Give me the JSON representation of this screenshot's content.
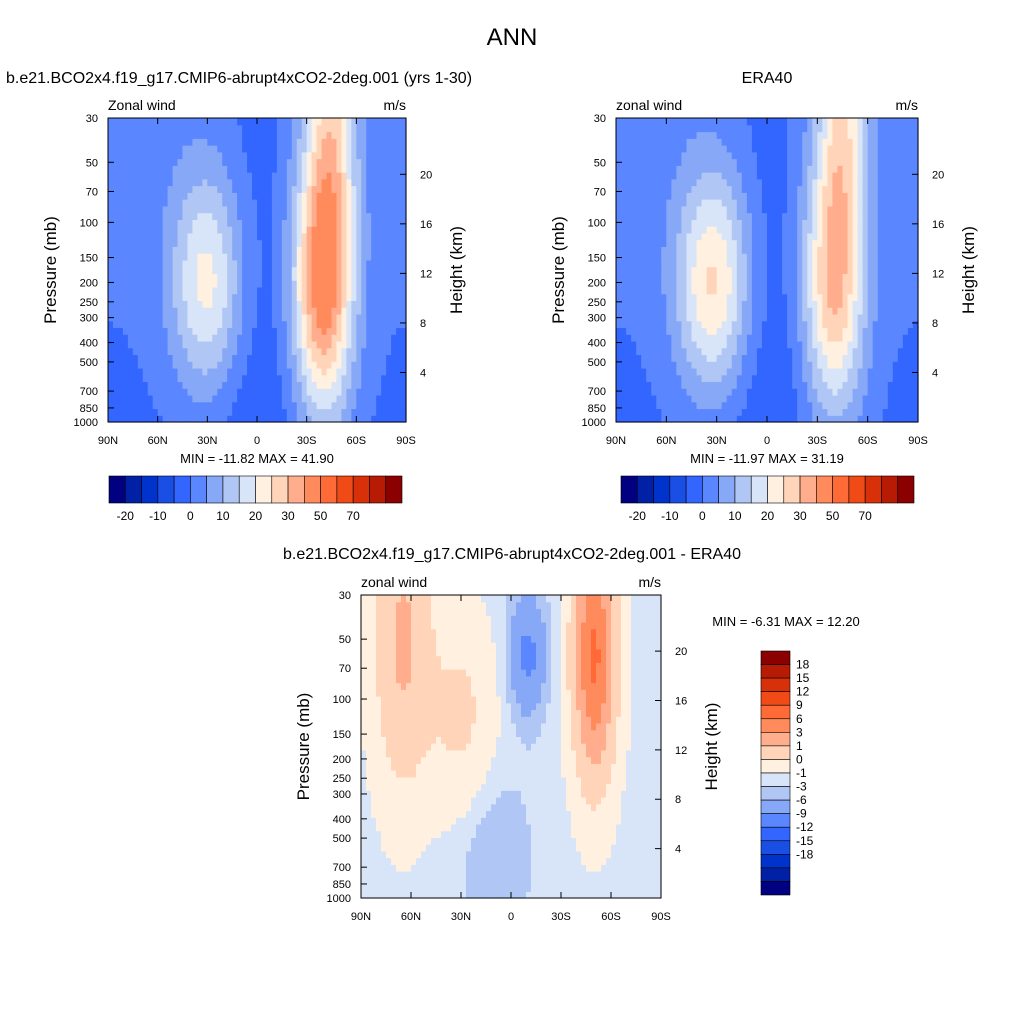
{
  "figure": {
    "main_title": "ANN"
  },
  "palette": {
    "neg": [
      "#000080",
      "#0021a6",
      "#0033cc",
      "#1a4fe6",
      "#3366ff",
      "#5a86ff",
      "#87a8f7",
      "#b0c6f5",
      "#d8e5f8"
    ],
    "pos": [
      "#fff0e0",
      "#ffd4b8",
      "#ffad8c",
      "#ff8a5c",
      "#ff6a36",
      "#f04a16",
      "#d83008",
      "#b81b03",
      "#8b0000"
    ],
    "fill_order_note": ""
  },
  "colorbar_top": {
    "labels": [
      "-20",
      "-10",
      "0",
      "10",
      "20",
      "30",
      "50",
      "70"
    ]
  },
  "colorbar_diff": {
    "labels": [
      "18",
      "15",
      "12",
      "9",
      "6",
      "3",
      "1",
      "0",
      "-1",
      "-3",
      "-6",
      "-9",
      "-12",
      "-15",
      "-18"
    ]
  },
  "chart_data": [
    {
      "type": "heatmap",
      "panel": "model",
      "title": "b.e21.BCO2x4.f19_g17.CMIP6-abrupt4xCO2-2deg.001 (yrs 1-30)",
      "left_string": "Zonal wind",
      "right_string": "m/s",
      "xlabel": "",
      "ylabel": "Pressure (mb)",
      "y2label": "Height (km)",
      "x_ticks": [
        "90N",
        "60N",
        "30N",
        "0",
        "30S",
        "60S",
        "90S"
      ],
      "y_ticks": [
        "30",
        "50",
        "70",
        "100",
        "150",
        "200",
        "250",
        "300",
        "400",
        "500",
        "700",
        "850",
        "1000"
      ],
      "y2_ticks": [
        "20",
        "16",
        "12",
        "8",
        "4"
      ],
      "min_max": "MIN = -11.82  MAX =  41.90",
      "min": -11.82,
      "max": 41.9,
      "jets": [
        {
          "lat": 30,
          "p": 200,
          "u": 22
        },
        {
          "lat": -40,
          "p": 200,
          "u": 40
        }
      ]
    },
    {
      "type": "heatmap",
      "panel": "obs",
      "title": "ERA40",
      "left_string": "zonal wind",
      "right_string": "m/s",
      "xlabel": "",
      "ylabel": "Pressure (mb)",
      "y2label": "Height (km)",
      "x_ticks": [
        "90N",
        "60N",
        "30N",
        "0",
        "30S",
        "60S",
        "90S"
      ],
      "y_ticks": [
        "30",
        "50",
        "70",
        "100",
        "150",
        "200",
        "250",
        "300",
        "400",
        "500",
        "700",
        "850",
        "1000"
      ],
      "y2_ticks": [
        "20",
        "16",
        "12",
        "8",
        "4"
      ],
      "min_max": "MIN = -11.97  MAX =  31.19",
      "min": -11.97,
      "max": 31.19,
      "jets": [
        {
          "lat": 32,
          "p": 200,
          "u": 26
        },
        {
          "lat": -40,
          "p": 200,
          "u": 31
        }
      ]
    },
    {
      "type": "heatmap",
      "panel": "diff",
      "title": "b.e21.BCO2x4.f19_g17.CMIP6-abrupt4xCO2-2deg.001 - ERA40",
      "left_string": "zonal wind",
      "right_string": "m/s",
      "xlabel": "",
      "ylabel": "Pressure (mb)",
      "y2label": "Height (km)",
      "x_ticks": [
        "90N",
        "60N",
        "30N",
        "0",
        "30S",
        "60S",
        "90S"
      ],
      "y_ticks": [
        "30",
        "50",
        "70",
        "100",
        "150",
        "200",
        "250",
        "300",
        "400",
        "500",
        "700",
        "850",
        "1000"
      ],
      "y2_ticks": [
        "20",
        "16",
        "12",
        "8",
        "4"
      ],
      "min_max": "MIN =  -6.31  MAX =  12.20",
      "min": -6.31,
      "max": 12.2
    }
  ]
}
